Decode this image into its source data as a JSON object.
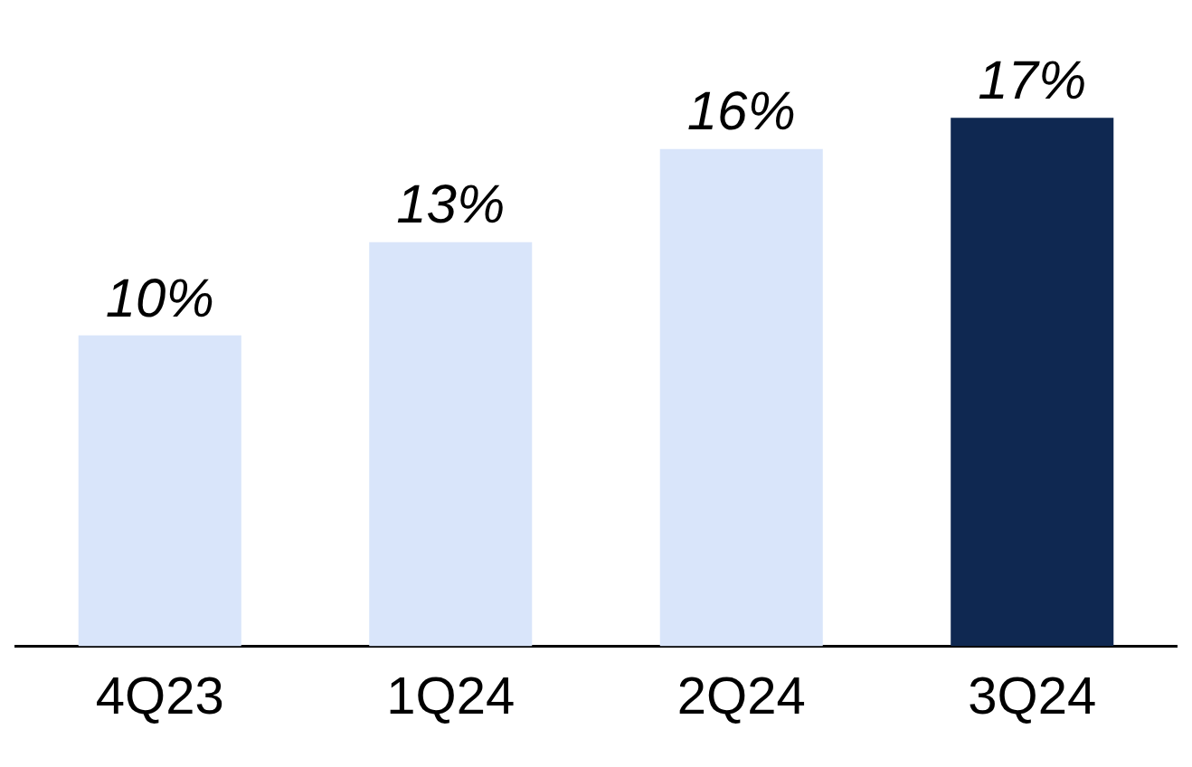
{
  "chart_data": {
    "type": "bar",
    "categories": [
      "4Q23",
      "1Q24",
      "2Q24",
      "3Q24"
    ],
    "values": [
      10,
      13,
      16,
      17
    ],
    "value_labels": [
      "10%",
      "13%",
      "16%",
      "17%"
    ],
    "colors": [
      "#d9e5fa",
      "#d9e5fa",
      "#d9e5fa",
      "#0f2851"
    ],
    "grid": false,
    "legend": false
  }
}
